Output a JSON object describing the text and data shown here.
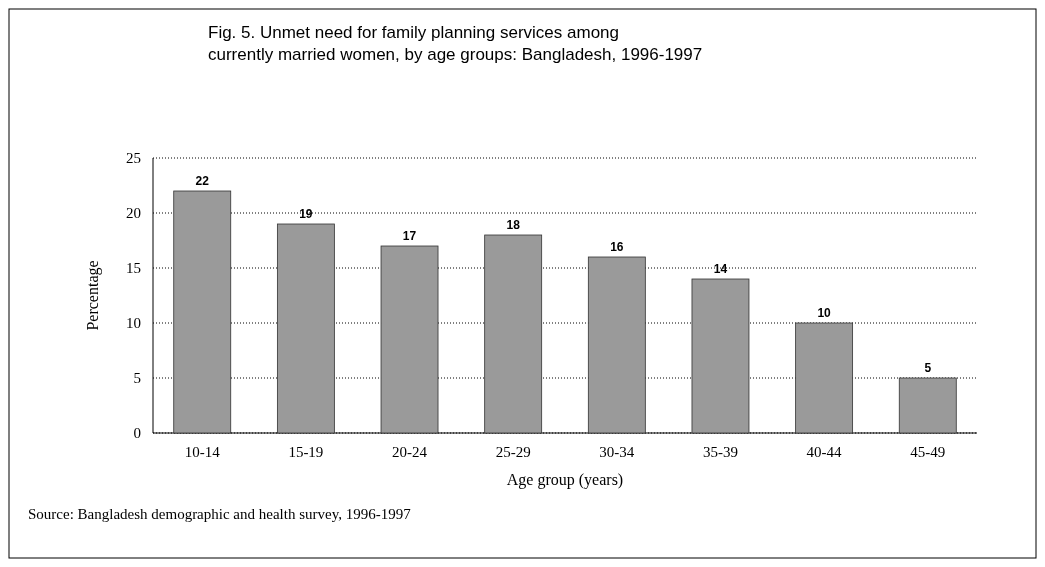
{
  "chart_data": {
    "type": "bar",
    "title": "Fig. 5.     Unmet need for family planning services among currently married women, by age groups: Bangladesh, 1996-1997",
    "xlabel": "Age group (years)",
    "ylabel": "Percentage",
    "categories": [
      "10-14",
      "15-19",
      "20-24",
      "25-29",
      "30-34",
      "35-39",
      "40-44",
      "45-49"
    ],
    "values": [
      22,
      19,
      17,
      18,
      16,
      14,
      10,
      5
    ],
    "color": "#9a9a9a",
    "ylim": [
      0,
      25
    ],
    "yticks": [
      0,
      5,
      10,
      15,
      20,
      25
    ],
    "grid": "y",
    "data_labels": true,
    "annotations": [
      "Source: Bangladesh demographic and health survey, 1996-1997"
    ]
  }
}
